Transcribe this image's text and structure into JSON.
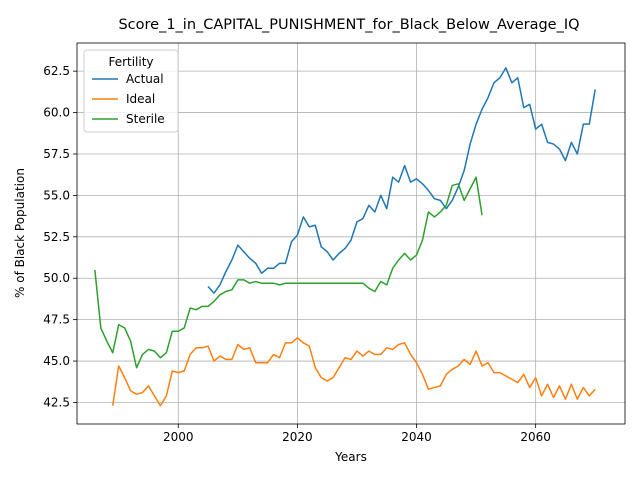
{
  "chart_data": {
    "type": "line",
    "title": "Score_1_in_CAPITAL_PUNISHMENT_for_Black_Below_Average_IQ",
    "xlabel": "Years",
    "ylabel": "% of Black Population",
    "xlim": [
      1983,
      2075
    ],
    "ylim": [
      41.2,
      64.2
    ],
    "xticks": [
      2000,
      2020,
      2040,
      2060
    ],
    "yticks": [
      42.5,
      45.0,
      47.5,
      50.0,
      52.5,
      55.0,
      57.5,
      60.0,
      62.5
    ],
    "grid": true,
    "legend": {
      "title": "Fertility",
      "placement": "top-left"
    },
    "series": [
      {
        "name": "Actual",
        "color": "#1f77b4",
        "x": [
          2005,
          2006,
          2007,
          2008,
          2009,
          2010,
          2011,
          2012,
          2013,
          2014,
          2015,
          2016,
          2017,
          2018,
          2019,
          2020,
          2021,
          2022,
          2023,
          2024,
          2025,
          2026,
          2027,
          2028,
          2029,
          2030,
          2031,
          2032,
          2033,
          2034,
          2035,
          2036,
          2037,
          2038,
          2039,
          2040,
          2041,
          2042,
          2043,
          2044,
          2045,
          2046,
          2047,
          2048,
          2049,
          2050,
          2051,
          2052,
          2053,
          2054,
          2055,
          2056,
          2057,
          2058,
          2059,
          2060,
          2061,
          2062,
          2063,
          2064,
          2065,
          2066,
          2067,
          2068,
          2069,
          2070
        ],
        "y": [
          49.5,
          49.1,
          49.6,
          50.4,
          51.1,
          52.0,
          51.6,
          51.2,
          50.9,
          50.3,
          50.6,
          50.6,
          50.9,
          50.9,
          52.2,
          52.6,
          53.7,
          53.1,
          53.2,
          51.9,
          51.6,
          51.1,
          51.5,
          51.8,
          52.3,
          53.4,
          53.6,
          54.4,
          54.0,
          55.0,
          54.2,
          56.1,
          55.8,
          56.8,
          55.8,
          56.0,
          55.7,
          55.3,
          54.8,
          54.7,
          54.2,
          54.7,
          55.5,
          56.5,
          58.1,
          59.3,
          60.2,
          60.9,
          61.8,
          62.1,
          62.7,
          61.8,
          62.1,
          60.3,
          60.5,
          59.0,
          59.3,
          58.2,
          58.1,
          57.8,
          57.1,
          58.2,
          57.5,
          59.3,
          59.3,
          61.4
        ]
      },
      {
        "name": "Ideal",
        "color": "#ff7f0e",
        "x": [
          1989,
          1990,
          1991,
          1992,
          1993,
          1994,
          1995,
          1996,
          1997,
          1998,
          1999,
          2000,
          2001,
          2002,
          2003,
          2004,
          2005,
          2006,
          2007,
          2008,
          2009,
          2010,
          2011,
          2012,
          2013,
          2014,
          2015,
          2016,
          2017,
          2018,
          2019,
          2020,
          2021,
          2022,
          2023,
          2024,
          2025,
          2026,
          2027,
          2028,
          2029,
          2030,
          2031,
          2032,
          2033,
          2034,
          2035,
          2036,
          2037,
          2038,
          2039,
          2040,
          2041,
          2042,
          2043,
          2044,
          2045,
          2046,
          2047,
          2048,
          2049,
          2050,
          2051,
          2052,
          2053,
          2054,
          2055,
          2056,
          2057,
          2058,
          2059,
          2060,
          2061,
          2062,
          2063,
          2064,
          2065,
          2066,
          2067,
          2068,
          2069,
          2070
        ],
        "y": [
          42.3,
          44.7,
          44.0,
          43.2,
          43.0,
          43.1,
          43.5,
          42.9,
          42.3,
          42.9,
          44.4,
          44.3,
          44.4,
          45.4,
          45.8,
          45.8,
          45.9,
          45.0,
          45.3,
          45.1,
          45.1,
          46.0,
          45.7,
          45.8,
          44.9,
          44.9,
          44.9,
          45.4,
          45.2,
          46.1,
          46.1,
          46.4,
          46.1,
          45.9,
          44.6,
          44.0,
          43.8,
          44.0,
          44.6,
          45.2,
          45.1,
          45.6,
          45.3,
          45.6,
          45.4,
          45.4,
          45.8,
          45.7,
          46.0,
          46.1,
          45.4,
          44.9,
          44.2,
          43.3,
          43.4,
          43.5,
          44.2,
          44.5,
          44.7,
          45.1,
          44.8,
          45.6,
          44.7,
          44.9,
          44.3,
          44.3,
          44.1,
          43.9,
          43.7,
          44.2,
          43.4,
          44.0,
          42.9,
          43.6,
          42.8,
          43.5,
          42.7,
          43.6,
          42.7,
          43.4,
          42.9,
          43.3
        ]
      },
      {
        "name": "Sterile",
        "color": "#2ca02c",
        "x": [
          1986,
          1987,
          1988,
          1989,
          1990,
          1991,
          1992,
          1993,
          1994,
          1995,
          1996,
          1997,
          1998,
          1999,
          2000,
          2001,
          2002,
          2003,
          2004,
          2005,
          2006,
          2007,
          2008,
          2009,
          2010,
          2011,
          2012,
          2013,
          2014,
          2015,
          2016,
          2017,
          2018,
          2019,
          2020,
          2021,
          2022,
          2023,
          2024,
          2025,
          2026,
          2027,
          2028,
          2029,
          2030,
          2031,
          2032,
          2033,
          2034,
          2035,
          2036,
          2037,
          2038,
          2039,
          2040,
          2041,
          2042,
          2043,
          2044,
          2045,
          2046,
          2047,
          2048,
          2049,
          2050,
          2051
        ],
        "y": [
          50.5,
          47.0,
          46.2,
          45.5,
          47.2,
          47.0,
          46.2,
          44.6,
          45.4,
          45.7,
          45.6,
          45.2,
          45.5,
          46.8,
          46.8,
          47.0,
          48.2,
          48.1,
          48.3,
          48.3,
          48.6,
          49.0,
          49.2,
          49.3,
          49.9,
          49.9,
          49.7,
          49.8,
          49.7,
          49.7,
          49.7,
          49.6,
          49.7,
          49.7,
          49.7,
          49.7,
          49.7,
          49.7,
          49.7,
          49.7,
          49.7,
          49.7,
          49.7,
          49.7,
          49.7,
          49.7,
          49.4,
          49.2,
          49.8,
          49.6,
          50.6,
          51.1,
          51.5,
          51.1,
          51.4,
          52.3,
          54.0,
          53.7,
          54.0,
          54.4,
          55.6,
          55.7,
          54.7,
          55.4,
          56.1,
          53.8
        ]
      }
    ]
  }
}
